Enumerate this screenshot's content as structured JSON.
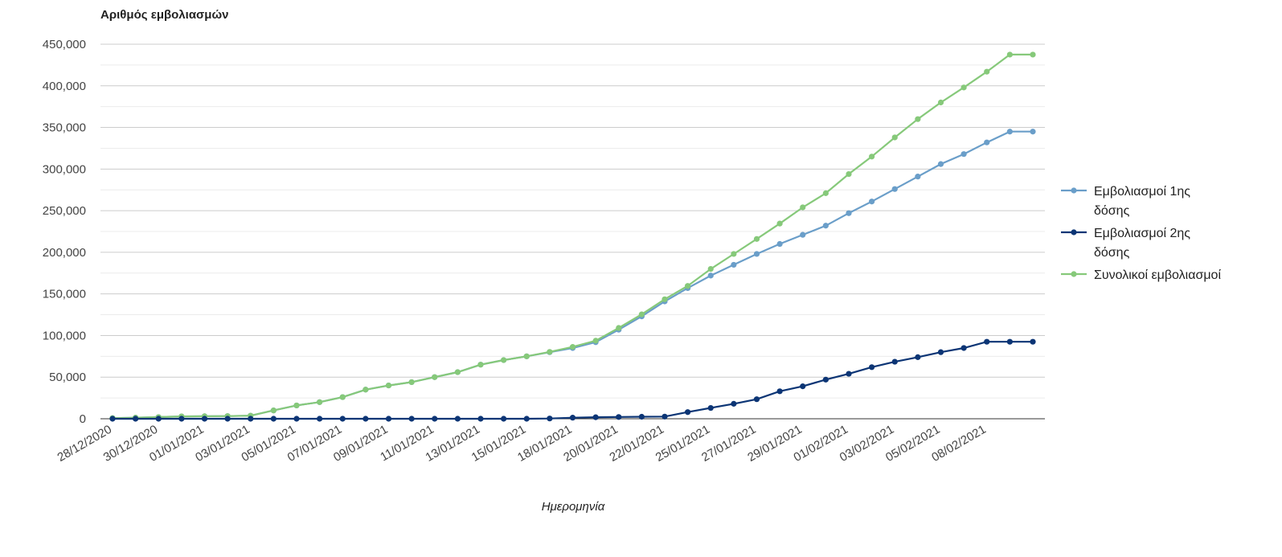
{
  "chart_data": {
    "type": "line",
    "ylabel": "Αριθμός εμβολιασμών",
    "xlabel": "Ημερομηνία",
    "ylim": [
      0,
      450000
    ],
    "yticks": [
      0,
      50000,
      100000,
      150000,
      200000,
      250000,
      300000,
      350000,
      400000,
      450000
    ],
    "ytick_labels": [
      "0",
      "50,000",
      "100,000",
      "150,000",
      "200,000",
      "250,000",
      "300,000",
      "350,000",
      "400,000",
      "450,000"
    ],
    "grid": true,
    "legend_position": "right",
    "x": [
      "28/12/2020",
      "29/12/2020",
      "30/12/2020",
      "31/12/2020",
      "01/01/2021",
      "02/01/2021",
      "03/01/2021",
      "04/01/2021",
      "05/01/2021",
      "06/01/2021",
      "07/01/2021",
      "08/01/2021",
      "09/01/2021",
      "10/01/2021",
      "11/01/2021",
      "12/01/2021",
      "13/01/2021",
      "14/01/2021",
      "15/01/2021",
      "16/01/2021",
      "18/01/2021",
      "19/01/2021",
      "20/01/2021",
      "21/01/2021",
      "22/01/2021",
      "23/01/2021",
      "25/01/2021",
      "26/01/2021",
      "27/01/2021",
      "28/01/2021",
      "29/01/2021",
      "30/01/2021",
      "01/02/2021",
      "02/02/2021",
      "03/02/2021",
      "04/02/2021",
      "05/02/2021",
      "06/02/2021",
      "08/02/2021",
      "09/02/2021",
      "10/02/2021"
    ],
    "x_tick_labels": [
      "28/12/2020",
      "30/12/2020",
      "01/01/2021",
      "03/01/2021",
      "05/01/2021",
      "07/01/2021",
      "09/01/2021",
      "11/01/2021",
      "13/01/2021",
      "15/01/2021",
      "18/01/2021",
      "20/01/2021",
      "22/01/2021",
      "25/01/2021",
      "27/01/2021",
      "29/01/2021",
      "01/02/2021",
      "03/02/2021",
      "05/02/2021",
      "08/02/2021"
    ],
    "series": [
      {
        "name": "Εμβολιασμοί 1ης δόσης",
        "color": "#6a9ec9",
        "values": [
          800,
          1300,
          2000,
          2800,
          3000,
          3200,
          3700,
          10000,
          16000,
          20000,
          26000,
          35000,
          40000,
          44000,
          50000,
          56000,
          65000,
          70500,
          75000,
          80000,
          85000,
          92000,
          107000,
          123000,
          141000,
          157000,
          172000,
          185000,
          198000,
          210000,
          221000,
          232000,
          247000,
          261000,
          276000,
          291000,
          306000,
          318000,
          332000,
          345000,
          345000
        ]
      },
      {
        "name": "Εμβολιασμοί 2ης δόσης",
        "color": "#0c3575",
        "values": [
          0,
          0,
          0,
          0,
          0,
          0,
          0,
          0,
          0,
          0,
          0,
          0,
          0,
          0,
          0,
          0,
          0,
          0,
          0,
          300,
          1300,
          1800,
          2100,
          2400,
          2600,
          8000,
          13000,
          18000,
          23500,
          33000,
          39000,
          47000,
          54000,
          62000,
          68500,
          74000,
          80000,
          85000,
          92500,
          92500,
          92500
        ]
      },
      {
        "name": "Συνολικοί εμβολιασμοί",
        "color": "#86c97a",
        "values": [
          800,
          1300,
          2000,
          2800,
          3000,
          3200,
          3700,
          10000,
          16000,
          20000,
          26000,
          35000,
          40000,
          44000,
          50000,
          56000,
          65000,
          70500,
          75000,
          80300,
          86300,
          93800,
          109100,
          125400,
          143600,
          159600,
          180000,
          198000,
          216000,
          234500,
          254000,
          271000,
          294000,
          315000,
          338000,
          360000,
          380000,
          398000,
          417000,
          437500,
          437500
        ]
      }
    ]
  },
  "legend": {
    "items": [
      {
        "line1": "Εμβολιασμοί 1ης",
        "line2": "δόσης",
        "color": "#6a9ec9"
      },
      {
        "line1": "Εμβολιασμοί 2ης",
        "line2": "δόσης",
        "color": "#0c3575"
      },
      {
        "line1": "Συνολικοί εμβολιασμοί",
        "line2": "",
        "color": "#86c97a"
      }
    ]
  }
}
